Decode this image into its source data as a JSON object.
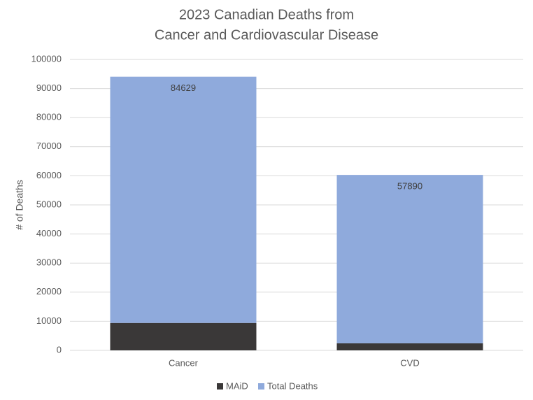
{
  "chart_data": {
    "type": "stacked-bar",
    "title": [
      "2023 Canadian Deaths from",
      "Cancer and Cardiovascular Disease"
    ],
    "y_label": "# of Deaths",
    "categories": [
      "Cancer",
      "CVD"
    ],
    "series": [
      {
        "name": "MAiD",
        "color": "#3a3838",
        "values": [
          9435,
          2416
        ]
      },
      {
        "name": "Total Deaths",
        "color": "#8faadc",
        "values": [
          84629,
          57890
        ]
      }
    ],
    "ylim": [
      0,
      100000
    ],
    "yticks": [
      0,
      10000,
      20000,
      30000,
      40000,
      50000,
      60000,
      70000,
      80000,
      90000,
      100000
    ],
    "grid": true,
    "legend": "bottom"
  }
}
